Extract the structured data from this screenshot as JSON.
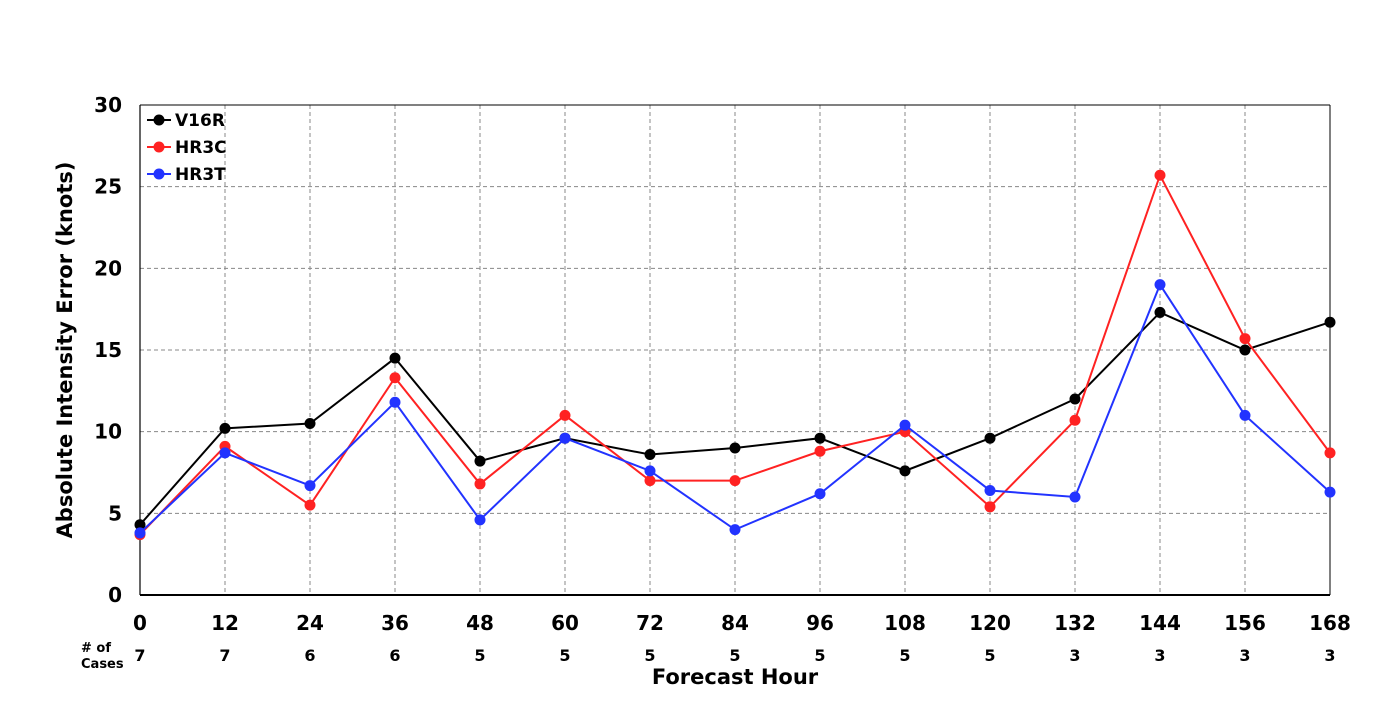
{
  "chart_data": {
    "type": "line",
    "title": "",
    "xlabel": "Forecast Hour",
    "ylabel": "Absolute Intensity Error (knots)",
    "x": [
      0,
      12,
      24,
      36,
      48,
      60,
      72,
      84,
      96,
      108,
      120,
      132,
      144,
      156,
      168
    ],
    "xlim": [
      0,
      168
    ],
    "ylim": [
      0,
      30
    ],
    "yticks": [
      0,
      5,
      10,
      15,
      20,
      25,
      30
    ],
    "grid": true,
    "legend_position": "top-left",
    "series": [
      {
        "name": "V16R",
        "color": "#000000",
        "values": [
          4.3,
          10.2,
          10.5,
          14.5,
          8.2,
          9.6,
          8.6,
          9.0,
          9.6,
          7.6,
          9.6,
          12.0,
          17.3,
          15.0,
          16.7
        ]
      },
      {
        "name": "HR3C",
        "color": "#ff2222",
        "values": [
          3.7,
          9.1,
          5.5,
          13.3,
          6.8,
          11.0,
          7.0,
          7.0,
          8.8,
          10.0,
          5.4,
          10.7,
          25.7,
          15.7,
          8.7
        ]
      },
      {
        "name": "HR3T",
        "color": "#2233ff",
        "values": [
          3.8,
          8.7,
          6.7,
          11.8,
          4.6,
          9.6,
          7.6,
          4.0,
          6.2,
          10.4,
          6.4,
          6.0,
          19.0,
          11.0,
          6.3
        ]
      }
    ],
    "cases_label_line1": "# of",
    "cases_label_line2": "Cases",
    "cases": [
      7,
      7,
      6,
      6,
      5,
      5,
      5,
      5,
      5,
      5,
      5,
      3,
      3,
      3,
      3
    ]
  }
}
